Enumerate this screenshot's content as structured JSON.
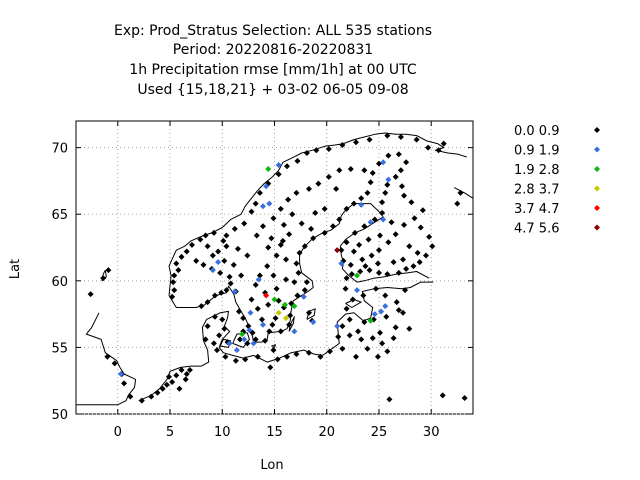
{
  "chart_data": {
    "type": "scatter",
    "title_lines": [
      "Exp: Prod_Stratus   Selection: ALL    535 stations",
      "Period: 20220816-20220831",
      "1h Precipitation rmse [mm/1h] at  00 UTC",
      "Used {15,18,21} + 03-02 06-05 09-08"
    ],
    "xlabel": "Lon",
    "ylabel": "Lat",
    "xlim": [
      -4,
      34
    ],
    "ylim": [
      50,
      72
    ],
    "xticks": [
      0,
      5,
      10,
      15,
      20,
      25,
      30
    ],
    "yticks": [
      50,
      55,
      60,
      65,
      70
    ],
    "grid": true,
    "legend_position": "right",
    "series": [
      {
        "name": "0.0 0.9",
        "color": "#000000",
        "points": [
          [
            -2.6,
            59.0
          ],
          [
            -1.4,
            60.2
          ],
          [
            -0.9,
            60.8
          ],
          [
            -1.0,
            54.3
          ],
          [
            -0.3,
            53.8
          ],
          [
            0.4,
            53.0
          ],
          [
            0.6,
            52.3
          ],
          [
            1.2,
            51.3
          ],
          [
            2.3,
            51.0
          ],
          [
            3.2,
            51.3
          ],
          [
            3.8,
            51.6
          ],
          [
            4.3,
            51.9
          ],
          [
            4.7,
            52.2
          ],
          [
            5.2,
            52.4
          ],
          [
            5.6,
            52.9
          ],
          [
            6.1,
            53.3
          ],
          [
            6.5,
            52.6
          ],
          [
            4.9,
            52.8
          ],
          [
            5.9,
            51.9
          ],
          [
            6.6,
            53.0
          ],
          [
            6.9,
            53.3
          ],
          [
            5.2,
            58.8
          ],
          [
            5.4,
            59.3
          ],
          [
            5.3,
            59.9
          ],
          [
            5.4,
            60.4
          ],
          [
            5.8,
            60.8
          ],
          [
            5.6,
            61.3
          ],
          [
            6.1,
            61.8
          ],
          [
            6.6,
            62.2
          ],
          [
            7.1,
            62.7
          ],
          [
            7.9,
            63.1
          ],
          [
            8.4,
            63.4
          ],
          [
            9.2,
            63.6
          ],
          [
            10.4,
            63.4
          ],
          [
            11.2,
            63.9
          ],
          [
            12.1,
            64.3
          ],
          [
            12.8,
            65.2
          ],
          [
            13.2,
            65.8
          ],
          [
            13.6,
            66.6
          ],
          [
            14.4,
            67.3
          ],
          [
            15.4,
            68.0
          ],
          [
            16.2,
            68.6
          ],
          [
            17.2,
            69.0
          ],
          [
            18.1,
            69.6
          ],
          [
            19.0,
            69.8
          ],
          [
            20.2,
            69.9
          ],
          [
            21.5,
            70.2
          ],
          [
            22.8,
            70.4
          ],
          [
            24.1,
            70.6
          ],
          [
            25.8,
            70.9
          ],
          [
            27.1,
            70.8
          ],
          [
            28.6,
            70.6
          ],
          [
            29.7,
            70.0
          ],
          [
            30.7,
            69.8
          ],
          [
            31.2,
            70.3
          ],
          [
            8.0,
            58.1
          ],
          [
            8.6,
            58.4
          ],
          [
            9.3,
            58.9
          ],
          [
            9.9,
            59.1
          ],
          [
            10.4,
            59.3
          ],
          [
            10.8,
            59.8
          ],
          [
            11.3,
            59.2
          ],
          [
            10.7,
            60.3
          ],
          [
            9.8,
            60.6
          ],
          [
            9.0,
            60.9
          ],
          [
            8.2,
            61.2
          ],
          [
            7.5,
            61.5
          ],
          [
            9.1,
            61.9
          ],
          [
            10.2,
            61.5
          ],
          [
            11.1,
            61.2
          ],
          [
            11.8,
            60.4
          ],
          [
            12.4,
            61.9
          ],
          [
            11.5,
            62.4
          ],
          [
            10.4,
            62.6
          ],
          [
            9.6,
            62.2
          ],
          [
            8.6,
            62.6
          ],
          [
            10.1,
            63.0
          ],
          [
            11.6,
            57.7
          ],
          [
            12.0,
            57.2
          ],
          [
            12.5,
            56.6
          ],
          [
            12.9,
            56.1
          ],
          [
            13.2,
            55.6
          ],
          [
            14.1,
            55.5
          ],
          [
            14.5,
            56.2
          ],
          [
            15.6,
            56.2
          ],
          [
            16.4,
            56.7
          ],
          [
            16.5,
            57.4
          ],
          [
            16.6,
            58.3
          ],
          [
            17.2,
            58.9
          ],
          [
            17.9,
            59.3
          ],
          [
            18.1,
            59.9
          ],
          [
            17.3,
            60.6
          ],
          [
            17.1,
            61.3
          ],
          [
            17.4,
            62.1
          ],
          [
            17.9,
            62.6
          ],
          [
            18.7,
            63.2
          ],
          [
            19.8,
            63.6
          ],
          [
            20.6,
            64.1
          ],
          [
            21.2,
            64.6
          ],
          [
            21.9,
            65.4
          ],
          [
            22.6,
            65.8
          ],
          [
            23.3,
            66.2
          ],
          [
            23.9,
            66.6
          ],
          [
            24.2,
            67.4
          ],
          [
            23.6,
            68.3
          ],
          [
            22.3,
            68.4
          ],
          [
            21.2,
            68.3
          ],
          [
            20.2,
            67.8
          ],
          [
            19.2,
            67.3
          ],
          [
            18.3,
            66.9
          ],
          [
            17.1,
            66.6
          ],
          [
            16.3,
            66.1
          ],
          [
            15.6,
            65.4
          ],
          [
            14.9,
            64.7
          ],
          [
            13.9,
            64.1
          ],
          [
            13.3,
            63.4
          ],
          [
            14.7,
            63.2
          ],
          [
            15.6,
            62.7
          ],
          [
            16.4,
            63.5
          ],
          [
            15.2,
            61.9
          ],
          [
            14.3,
            61.1
          ],
          [
            13.6,
            60.4
          ],
          [
            13.2,
            59.7
          ],
          [
            14.1,
            59.1
          ],
          [
            15.2,
            59.4
          ],
          [
            16.1,
            60.1
          ],
          [
            15.4,
            58.5
          ],
          [
            14.4,
            58.2
          ],
          [
            13.4,
            57.9
          ],
          [
            12.8,
            58.6
          ],
          [
            13.8,
            57.1
          ],
          [
            15.1,
            57.2
          ],
          [
            14.8,
            56.7
          ],
          [
            15.9,
            58.0
          ],
          [
            18.3,
            57.6
          ],
          [
            18.6,
            57.0
          ],
          [
            19.8,
            65.4
          ],
          [
            20.9,
            66.9
          ],
          [
            18.9,
            65.1
          ],
          [
            17.6,
            64.3
          ],
          [
            16.7,
            65.0
          ],
          [
            15.9,
            64.2
          ],
          [
            14.4,
            62.5
          ],
          [
            16.1,
            61.6
          ],
          [
            16.9,
            59.9
          ],
          [
            14.9,
            60.4
          ],
          [
            15.8,
            63.0
          ],
          [
            18.5,
            63.9
          ],
          [
            21.9,
            60.2
          ],
          [
            22.4,
            60.5
          ],
          [
            23.2,
            60.7
          ],
          [
            24.1,
            60.8
          ],
          [
            25.0,
            60.6
          ],
          [
            25.8,
            60.5
          ],
          [
            26.9,
            60.6
          ],
          [
            27.6,
            60.9
          ],
          [
            28.3,
            61.1
          ],
          [
            28.9,
            61.4
          ],
          [
            29.5,
            61.9
          ],
          [
            30.1,
            62.6
          ],
          [
            29.8,
            63.3
          ],
          [
            29.0,
            64.0
          ],
          [
            28.4,
            64.7
          ],
          [
            29.2,
            65.3
          ],
          [
            28.1,
            65.9
          ],
          [
            27.4,
            66.4
          ],
          [
            27.2,
            67.1
          ],
          [
            26.6,
            67.8
          ],
          [
            27.1,
            68.3
          ],
          [
            27.6,
            68.9
          ],
          [
            26.9,
            69.5
          ],
          [
            25.9,
            69.4
          ],
          [
            25.0,
            68.8
          ],
          [
            24.4,
            68.1
          ],
          [
            25.8,
            67.2
          ],
          [
            25.6,
            66.6
          ],
          [
            25.3,
            65.9
          ],
          [
            25.3,
            65.1
          ],
          [
            24.6,
            64.6
          ],
          [
            23.6,
            64.1
          ],
          [
            22.7,
            63.6
          ],
          [
            21.9,
            62.9
          ],
          [
            21.4,
            62.3
          ],
          [
            21.6,
            61.5
          ],
          [
            22.3,
            61.2
          ],
          [
            23.4,
            61.6
          ],
          [
            24.3,
            61.9
          ],
          [
            25.0,
            62.3
          ],
          [
            25.9,
            62.9
          ],
          [
            26.6,
            63.5
          ],
          [
            27.4,
            64.2
          ],
          [
            26.2,
            64.4
          ],
          [
            25.1,
            63.4
          ],
          [
            24.0,
            63.1
          ],
          [
            23.1,
            62.7
          ],
          [
            22.6,
            62.2
          ],
          [
            27.9,
            62.6
          ],
          [
            28.7,
            62.1
          ],
          [
            26.4,
            61.4
          ],
          [
            27.3,
            61.6
          ],
          [
            24.9,
            61.3
          ],
          [
            23.7,
            61.1
          ],
          [
            21.8,
            59.4
          ],
          [
            22.5,
            58.6
          ],
          [
            23.5,
            58.9
          ],
          [
            24.7,
            59.4
          ],
          [
            25.6,
            58.9
          ],
          [
            26.7,
            58.4
          ],
          [
            27.5,
            59.3
          ],
          [
            26.9,
            57.8
          ],
          [
            25.7,
            57.3
          ],
          [
            24.5,
            57.1
          ],
          [
            23.6,
            56.9
          ],
          [
            22.2,
            57.1
          ],
          [
            21.5,
            56.6
          ],
          [
            21.1,
            55.8
          ],
          [
            22.2,
            55.9
          ],
          [
            23.3,
            55.6
          ],
          [
            24.4,
            55.7
          ],
          [
            25.3,
            55.3
          ],
          [
            26.4,
            55.7
          ],
          [
            25.8,
            54.7
          ],
          [
            24.9,
            54.3
          ],
          [
            23.9,
            54.9
          ],
          [
            22.8,
            54.3
          ],
          [
            26.6,
            56.5
          ],
          [
            27.9,
            56.4
          ],
          [
            27.3,
            57.6
          ],
          [
            23.0,
            56.2
          ],
          [
            25.1,
            56.1
          ],
          [
            21.9,
            57.9
          ],
          [
            14.6,
            53.5
          ],
          [
            15.3,
            54.1
          ],
          [
            16.2,
            54.3
          ],
          [
            17.1,
            54.5
          ],
          [
            18.3,
            54.6
          ],
          [
            19.4,
            54.3
          ],
          [
            20.3,
            54.7
          ],
          [
            21.5,
            54.9
          ],
          [
            13.4,
            54.3
          ],
          [
            12.2,
            54.1
          ],
          [
            11.3,
            54.0
          ],
          [
            10.3,
            54.3
          ],
          [
            9.5,
            54.8
          ],
          [
            9.2,
            55.3
          ],
          [
            9.7,
            55.9
          ],
          [
            10.2,
            56.4
          ],
          [
            10.0,
            57.1
          ],
          [
            9.3,
            57.3
          ],
          [
            8.6,
            56.6
          ],
          [
            8.4,
            55.6
          ],
          [
            11.7,
            55.6
          ],
          [
            12.4,
            55.3
          ],
          [
            12.0,
            56.2
          ],
          [
            10.5,
            55.4
          ],
          [
            14.9,
            54.8
          ],
          [
            26.0,
            51.1
          ],
          [
            31.1,
            51.4
          ],
          [
            33.2,
            51.2
          ],
          [
            32.5,
            65.8
          ],
          [
            32.8,
            66.6
          ]
        ]
      },
      {
        "name": "0.9 1.9",
        "color": "#3a6fe0",
        "points": [
          [
            0.3,
            53.0
          ],
          [
            9.1,
            60.8
          ],
          [
            9.6,
            61.4
          ],
          [
            11.2,
            59.2
          ],
          [
            13.5,
            60.1
          ],
          [
            13.0,
            55.3
          ],
          [
            12.1,
            55.6
          ],
          [
            11.4,
            54.8
          ],
          [
            10.7,
            55.3
          ],
          [
            12.6,
            56.3
          ],
          [
            13.9,
            56.7
          ],
          [
            14.5,
            65.8
          ],
          [
            13.9,
            65.6
          ],
          [
            14.2,
            67.1
          ],
          [
            15.4,
            68.7
          ],
          [
            17.8,
            58.8
          ],
          [
            18.7,
            56.9
          ],
          [
            16.9,
            56.2
          ],
          [
            21.0,
            56.6
          ],
          [
            21.4,
            61.3
          ],
          [
            24.2,
            64.4
          ],
          [
            25.4,
            64.6
          ],
          [
            25.4,
            68.9
          ],
          [
            25.9,
            67.6
          ],
          [
            23.3,
            65.7
          ],
          [
            24.6,
            57.5
          ],
          [
            25.2,
            57.7
          ],
          [
            22.9,
            59.3
          ],
          [
            25.6,
            58.1
          ],
          [
            12.7,
            57.6
          ]
        ]
      },
      {
        "name": "1.9 2.8",
        "color": "#0ab80a",
        "points": [
          [
            14.4,
            68.4
          ],
          [
            15.0,
            58.6
          ],
          [
            16.0,
            58.2
          ],
          [
            16.9,
            58.1
          ],
          [
            22.9,
            60.4
          ],
          [
            24.2,
            57.0
          ],
          [
            11.9,
            56.0
          ]
        ]
      },
      {
        "name": "2.8 3.7",
        "color": "#c8c800",
        "points": [
          [
            15.4,
            57.6
          ],
          [
            16.1,
            57.2
          ]
        ]
      },
      {
        "name": "3.7 4.7",
        "color": "#ff0000",
        "points": [
          [
            14.2,
            58.9
          ]
        ]
      },
      {
        "name": "4.7 5.6",
        "color": "#8b0000",
        "points": [
          [
            21.0,
            62.3
          ]
        ]
      }
    ]
  }
}
